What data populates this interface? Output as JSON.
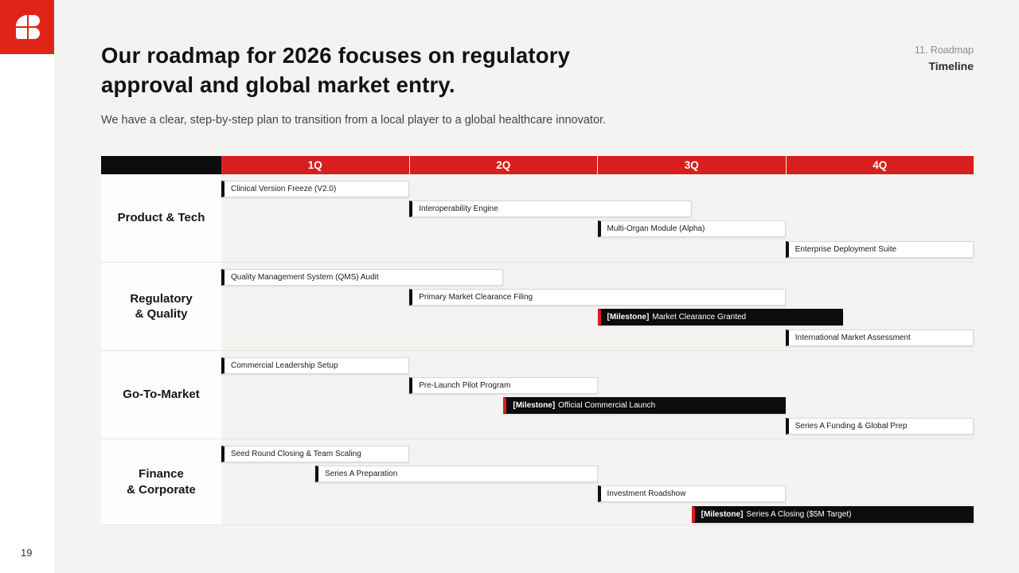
{
  "colors": {
    "brand_red": "#e02418",
    "header_red": "#d81e1e",
    "black": "#0c0c0c",
    "page_bg": "#f5f3f1",
    "bar_border": "#d9d6d2"
  },
  "sidebar": {
    "page_number": "19"
  },
  "header": {
    "kicker": "11. Roadmap",
    "tab": "Timeline",
    "title": "Our roadmap for 2026 focuses on regulatory\napproval and global market entry.",
    "subtitle": "We have a clear, step-by-step plan to transition from a local player to a global healthcare innovator."
  },
  "gantt": {
    "quarters": [
      "1Q",
      "2Q",
      "3Q",
      "4Q"
    ],
    "rows": [
      {
        "label": "Product & Tech",
        "bars": [
          {
            "label": "Clinical Version Freeze (V2.0)",
            "start": 0,
            "end": 0.25
          },
          {
            "label": "Interoperability Engine",
            "start": 0.25,
            "end": 0.625
          },
          {
            "label": "Multi-Organ Module (Alpha)",
            "start": 0.5,
            "end": 0.75
          },
          {
            "label": "Enterprise Deployment Suite",
            "start": 0.75,
            "end": 1
          }
        ]
      },
      {
        "label": "Regulatory\n& Quality",
        "bars": [
          {
            "label": "Quality Management System (QMS) Audit",
            "start": 0,
            "end": 0.375
          },
          {
            "label": "Primary Market Clearance Filing",
            "start": 0.25,
            "end": 0.75
          },
          {
            "prefix": "[Milestone]",
            "label": "Market Clearance Granted",
            "start": 0.5,
            "end": 0.826,
            "milestone": true
          },
          {
            "label": "International Market Assessment",
            "start": 0.75,
            "end": 1
          }
        ]
      },
      {
        "label": "Go-To-Market",
        "bars": [
          {
            "label": "Commercial Leadership Setup",
            "start": 0,
            "end": 0.25
          },
          {
            "label": "Pre-Launch Pilot Program",
            "start": 0.25,
            "end": 0.5
          },
          {
            "prefix": "[Milestone]",
            "label": "Official Commercial Launch",
            "start": 0.375,
            "end": 0.75,
            "milestone": true
          },
          {
            "label": "Series A Funding & Global Prep",
            "start": 0.75,
            "end": 1
          }
        ]
      },
      {
        "label": "Finance\n& Corporate",
        "bars": [
          {
            "label": "Seed Round Closing & Team Scaling",
            "start": 0,
            "end": 0.25
          },
          {
            "label": "Series A Preparation",
            "start": 0.125,
            "end": 0.5
          },
          {
            "label": "Investment Roadshow",
            "start": 0.5,
            "end": 0.75
          },
          {
            "prefix": "[Milestone]",
            "label": "Series A Closing ($5M Target)",
            "start": 0.625,
            "end": 1,
            "milestone": true
          }
        ]
      }
    ]
  }
}
